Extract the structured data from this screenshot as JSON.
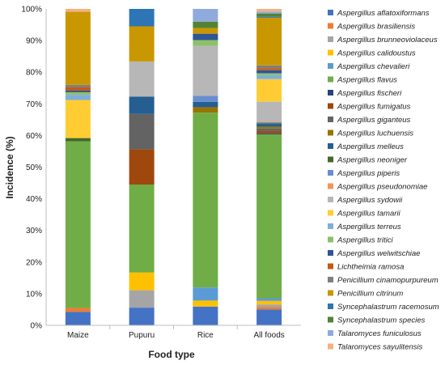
{
  "chart_data": {
    "type": "bar",
    "stacked": true,
    "xlabel": "Food type",
    "ylabel": "Incidence (%)",
    "ylim": [
      0,
      100
    ],
    "yticks": [
      "0%",
      "10%",
      "20%",
      "30%",
      "40%",
      "50%",
      "60%",
      "70%",
      "80%",
      "90%",
      "100%"
    ],
    "grid": false,
    "legend_position": "right",
    "categories": [
      "Maize",
      "Pupuru",
      "Rice",
      "All foods"
    ],
    "series": [
      {
        "name": "Aspergillus aflatoxiformans",
        "color": "#4472C4",
        "values": [
          4.2,
          5.6,
          5.9,
          4.9
        ]
      },
      {
        "name": "Aspergillus brasiliensis",
        "color": "#ED7D31",
        "values": [
          1.2,
          0,
          0,
          0.7
        ]
      },
      {
        "name": "Aspergillus brunneoviolaceus",
        "color": "#A5A5A5",
        "values": [
          0,
          5.5,
          0,
          0.8
        ]
      },
      {
        "name": "Aspergillus calidoustus",
        "color": "#FFC000",
        "values": [
          0,
          5.6,
          1.9,
          1.1
        ]
      },
      {
        "name": "Aspergillus chevalieri",
        "color": "#5B9BD5",
        "values": [
          0,
          0,
          4.1,
          0.8
        ]
      },
      {
        "name": "Aspergillus flavus",
        "color": "#70AD47",
        "values": [
          51.6,
          27.8,
          55.0,
          50.2
        ]
      },
      {
        "name": "Aspergillus fischeri",
        "color": "#264478",
        "values": [
          0,
          0,
          0,
          0.3
        ]
      },
      {
        "name": "Aspergillus fumigatus",
        "color": "#9E480E",
        "values": [
          0,
          11.1,
          0,
          0.7
        ]
      },
      {
        "name": "Aspergillus giganteus",
        "color": "#636363",
        "values": [
          0,
          11.2,
          0,
          0.8
        ]
      },
      {
        "name": "Aspergillus luchuensis",
        "color": "#997300",
        "values": [
          0,
          0,
          1.7,
          0.5
        ]
      },
      {
        "name": "Aspergillus melleus",
        "color": "#255E91",
        "values": [
          0,
          5.5,
          1.7,
          0.8
        ]
      },
      {
        "name": "Aspergillus neoniger",
        "color": "#43682B",
        "values": [
          1.0,
          0,
          0,
          0.3
        ]
      },
      {
        "name": "Aspergillus piperis",
        "color": "#698ED0",
        "values": [
          0,
          0,
          1.9,
          0.3
        ]
      },
      {
        "name": "Aspergillus pseudonomiae",
        "color": "#F1975A",
        "values": [
          0,
          0,
          0,
          0.2
        ]
      },
      {
        "name": "Aspergillus sydowii",
        "color": "#B7B7B7",
        "values": [
          0,
          11.1,
          15.7,
          6.1
        ]
      },
      {
        "name": "Aspergillus tamarii",
        "color": "#FFCD33",
        "values": [
          11.8,
          0,
          0,
          6.9
        ]
      },
      {
        "name": "Aspergillus terreus",
        "color": "#7CAFDD",
        "values": [
          1.6,
          0,
          0,
          1.2
        ]
      },
      {
        "name": "Aspergillus tritici",
        "color": "#8CC168",
        "values": [
          0.8,
          0,
          1.8,
          0.6
        ]
      },
      {
        "name": "Aspergillus welwitschiae",
        "color": "#2F5597",
        "values": [
          0.5,
          0,
          2.0,
          0.9
        ]
      },
      {
        "name": "Lichtheimia ramosa",
        "color": "#C55A11",
        "values": [
          1.0,
          0,
          0,
          0.6
        ]
      },
      {
        "name": "Penicillium cinamopurpureum",
        "color": "#7F7F7F",
        "values": [
          0.8,
          0,
          0,
          0.9
        ]
      },
      {
        "name": "Penicillium citrinum",
        "color": "#C99700",
        "values": [
          22.6,
          11.1,
          1.8,
          14.6
        ]
      },
      {
        "name": "Syncephalastrum racemosum",
        "color": "#2E75B6",
        "values": [
          0,
          5.5,
          0,
          0.3
        ]
      },
      {
        "name": "Syncephalastrum species",
        "color": "#548235",
        "values": [
          0,
          0,
          2.0,
          1.0
        ]
      },
      {
        "name": "Talaromyces funiculosus",
        "color": "#8FAADC",
        "values": [
          0,
          0,
          4.0,
          0.6
        ]
      },
      {
        "name": "Talaromyces sayulitensis",
        "color": "#F4B183",
        "values": [
          0.9,
          0,
          0,
          0.8
        ]
      }
    ]
  }
}
